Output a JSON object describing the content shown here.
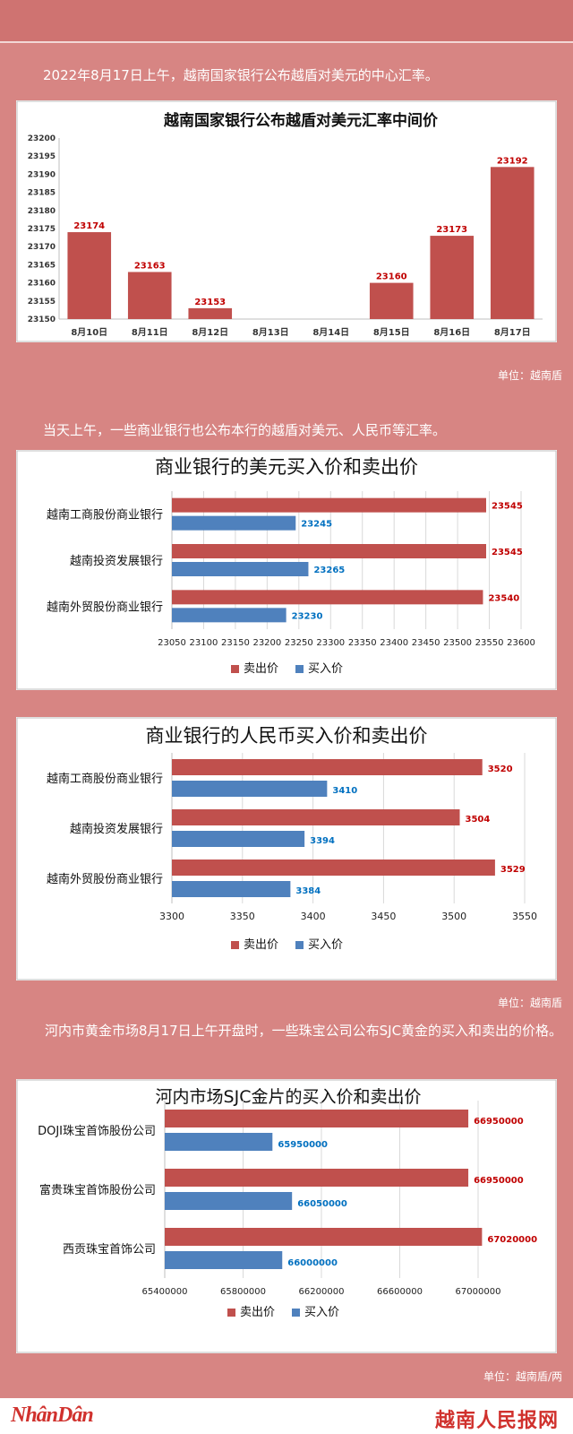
{
  "captions": {
    "c1": "2022年8月17日上午，越南国家银行公布越盾对美元的中心汇率。",
    "c2": "当天上午，一些商业银行也公布本行的越盾对美元、人民币等汇率。",
    "c3": "河内市黄金市场8月17日上午开盘时，一些珠宝公司公布SJC黄金的买入和卖出的价格。"
  },
  "units": {
    "u1": "单位：越南盾",
    "u2": "单位：越南盾",
    "u3": "单位：越南盾/两"
  },
  "footer": {
    "left_logo": "NhânDân",
    "right_logo": "越南人民报网"
  },
  "colors": {
    "sell": "#c0504d",
    "buy": "#4f81bd",
    "sell_label": "#c00000",
    "buy_label": "#0070c0",
    "background": "#d78583"
  },
  "chart_data": [
    {
      "type": "bar",
      "title": "越南国家银行公布越盾对美元汇率中间价",
      "categories": [
        "8月10日",
        "8月11日",
        "8月12日",
        "8月13日",
        "8月14日",
        "8月15日",
        "8月16日",
        "8月17日"
      ],
      "values": [
        23174,
        23163,
        23153,
        null,
        null,
        23160,
        23173,
        23192
      ],
      "ylim": [
        23150,
        23200
      ],
      "yticks": [
        23150,
        23155,
        23160,
        23165,
        23170,
        23175,
        23180,
        23185,
        23190,
        23195,
        23200
      ],
      "grid": false
    },
    {
      "type": "bar",
      "orientation": "horizontal",
      "title": "商业银行的美元买入价和卖出价",
      "categories": [
        "越南工商股份商业银行",
        "越南投资发展银行",
        "越南外贸股份商业银行"
      ],
      "series": [
        {
          "name": "卖出价",
          "values": [
            23545,
            23545,
            23540
          ]
        },
        {
          "name": "买入价",
          "values": [
            23245,
            23265,
            23230
          ]
        }
      ],
      "xlim": [
        23050,
        23600
      ],
      "xticks": [
        23050,
        23100,
        23150,
        23200,
        23250,
        23300,
        23350,
        23400,
        23450,
        23500,
        23550,
        23600
      ],
      "legend": "bottom",
      "grid": true
    },
    {
      "type": "bar",
      "orientation": "horizontal",
      "title": "商业银行的人民币买入价和卖出价",
      "categories": [
        "越南工商股份商业银行",
        "越南投资发展银行",
        "越南外贸股份商业银行"
      ],
      "series": [
        {
          "name": "卖出价",
          "values": [
            3520,
            3504,
            3529
          ]
        },
        {
          "name": "买入价",
          "values": [
            3410,
            3394,
            3384
          ]
        }
      ],
      "xlim": [
        3300,
        3550
      ],
      "xticks": [
        3300,
        3350,
        3400,
        3450,
        3500,
        3550
      ],
      "legend": "bottom",
      "grid": true
    },
    {
      "type": "bar",
      "orientation": "horizontal",
      "title": "河内市场SJC金片的买入价和卖出价",
      "categories": [
        "DOJI珠宝首饰股份公司",
        "富贵珠宝首饰股份公司",
        "西贡珠宝首饰公司"
      ],
      "series": [
        {
          "name": "卖出价",
          "values": [
            66950000,
            66950000,
            67020000
          ]
        },
        {
          "name": "买入价",
          "values": [
            65950000,
            66050000,
            66000000
          ]
        }
      ],
      "xlim": [
        65400000,
        67000000
      ],
      "xticks": [
        65400000,
        65800000,
        66200000,
        66600000,
        67000000
      ],
      "legend": "bottom",
      "grid": true
    }
  ]
}
